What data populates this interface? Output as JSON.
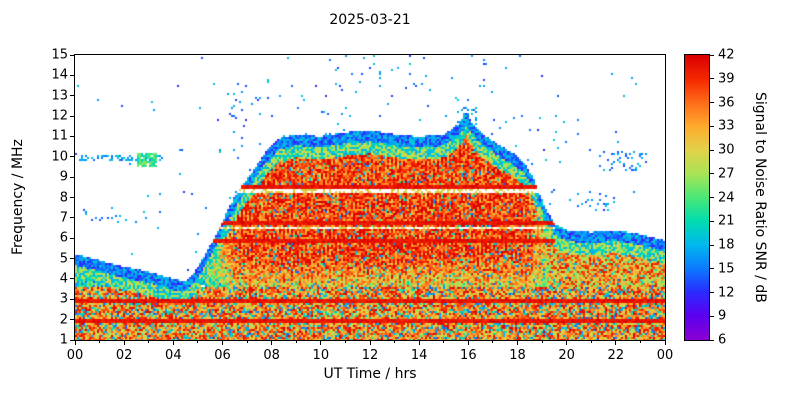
{
  "chart_data": {
    "type": "heatmap",
    "title": "2025-03-21",
    "xlabel": "UT Time / hrs",
    "ylabel": "Frequency / MHz",
    "colorbar_label": "Signal to Noise Ratio SNR / dB",
    "x_range": [
      0,
      24
    ],
    "y_range": [
      1,
      15
    ],
    "x_tick_labels": [
      "00",
      "02",
      "04",
      "06",
      "08",
      "10",
      "12",
      "14",
      "16",
      "18",
      "20",
      "22",
      "00"
    ],
    "y_tick_labels": [
      "1",
      "2",
      "3",
      "4",
      "5",
      "6",
      "7",
      "8",
      "9",
      "10",
      "11",
      "12",
      "13",
      "14",
      "15"
    ],
    "colorbar_range": [
      6,
      42
    ],
    "colorbar_tick_labels": [
      "42",
      "39",
      "36",
      "33",
      "30",
      "27",
      "24",
      "21",
      "18",
      "15",
      "12",
      "9",
      "6"
    ],
    "color_stops": [
      {
        "value": 6,
        "color": "#8a00d4"
      },
      {
        "value": 9,
        "color": "#5b00f0"
      },
      {
        "value": 12,
        "color": "#2b2bff"
      },
      {
        "value": 15,
        "color": "#0b7bff"
      },
      {
        "value": 18,
        "color": "#00b8ee"
      },
      {
        "value": 21,
        "color": "#00ddb0"
      },
      {
        "value": 24,
        "color": "#4ae878"
      },
      {
        "value": 27,
        "color": "#a8e455"
      },
      {
        "value": 30,
        "color": "#e2d24a"
      },
      {
        "value": 33,
        "color": "#ffab2e"
      },
      {
        "value": 36,
        "color": "#ff6d1a"
      },
      {
        "value": 39,
        "color": "#f52800"
      },
      {
        "value": 42,
        "color": "#db0000"
      }
    ],
    "envelope_max_freq_by_hour": [
      [
        0,
        5.2
      ],
      [
        0.8,
        5.0
      ],
      [
        1.6,
        4.7
      ],
      [
        2.4,
        4.5
      ],
      [
        3.2,
        4.3
      ],
      [
        4.0,
        4.0
      ],
      [
        4.5,
        3.9
      ],
      [
        4.9,
        4.4
      ],
      [
        5.3,
        5.2
      ],
      [
        5.8,
        6.3
      ],
      [
        6.3,
        7.6
      ],
      [
        6.8,
        8.6
      ],
      [
        7.3,
        9.4
      ],
      [
        7.8,
        10.3
      ],
      [
        8.3,
        10.9
      ],
      [
        9,
        11.1
      ],
      [
        10,
        11.0
      ],
      [
        11,
        11.2
      ],
      [
        12,
        11.3
      ],
      [
        13,
        11.1
      ],
      [
        14,
        11.0
      ],
      [
        15,
        11.1
      ],
      [
        15.6,
        11.6
      ],
      [
        15.9,
        12.2
      ],
      [
        16.2,
        11.6
      ],
      [
        16.6,
        11.1
      ],
      [
        17.2,
        10.6
      ],
      [
        17.8,
        10.2
      ],
      [
        18.3,
        9.7
      ],
      [
        18.7,
        8.8
      ],
      [
        19.1,
        7.6
      ],
      [
        19.5,
        6.7
      ],
      [
        20,
        6.4
      ],
      [
        21,
        6.3
      ],
      [
        22,
        6.4
      ],
      [
        23,
        6.2
      ],
      [
        24,
        5.9
      ]
    ],
    "features": {
      "bottom_band_max_freq": 3.6,
      "strong_lines_mhz": [
        1.95,
        2.95,
        5.85,
        6.75,
        8.55
      ],
      "gap_lines_mhz": [
        6.5,
        8.3
      ],
      "sprinkle_density": 0.004,
      "clusters": [
        {
          "t0": 0.2,
          "t1": 3.6,
          "f0": 9.82,
          "f1": 10.05,
          "density": 0.4,
          "snr_min": 14,
          "snr_max": 20
        },
        {
          "t0": 2.55,
          "t1": 3.3,
          "f0": 9.5,
          "f1": 10.15,
          "density": 0.8,
          "snr_min": 19,
          "snr_max": 27
        },
        {
          "t0": 21.3,
          "t1": 23.3,
          "f0": 9.3,
          "f1": 10.3,
          "density": 0.1,
          "snr_min": 13,
          "snr_max": 19
        },
        {
          "t0": 20.3,
          "t1": 22.2,
          "f0": 7.2,
          "f1": 8.3,
          "density": 0.08,
          "snr_min": 13,
          "snr_max": 19
        },
        {
          "t0": 0.3,
          "t1": 2.3,
          "f0": 6.8,
          "f1": 7.7,
          "density": 0.07,
          "snr_min": 13,
          "snr_max": 19
        },
        {
          "t0": 15.55,
          "t1": 16.35,
          "f0": 11.2,
          "f1": 12.4,
          "density": 0.35,
          "snr_min": 13,
          "snr_max": 20
        },
        {
          "t0": 6.3,
          "t1": 7.6,
          "f0": 11.5,
          "f1": 13.3,
          "density": 0.03,
          "snr_min": 13,
          "snr_max": 18
        },
        {
          "t0": 10.0,
          "t1": 14.5,
          "f0": 12.0,
          "f1": 14.6,
          "density": 0.012,
          "snr_min": 13,
          "snr_max": 18
        }
      ]
    }
  }
}
